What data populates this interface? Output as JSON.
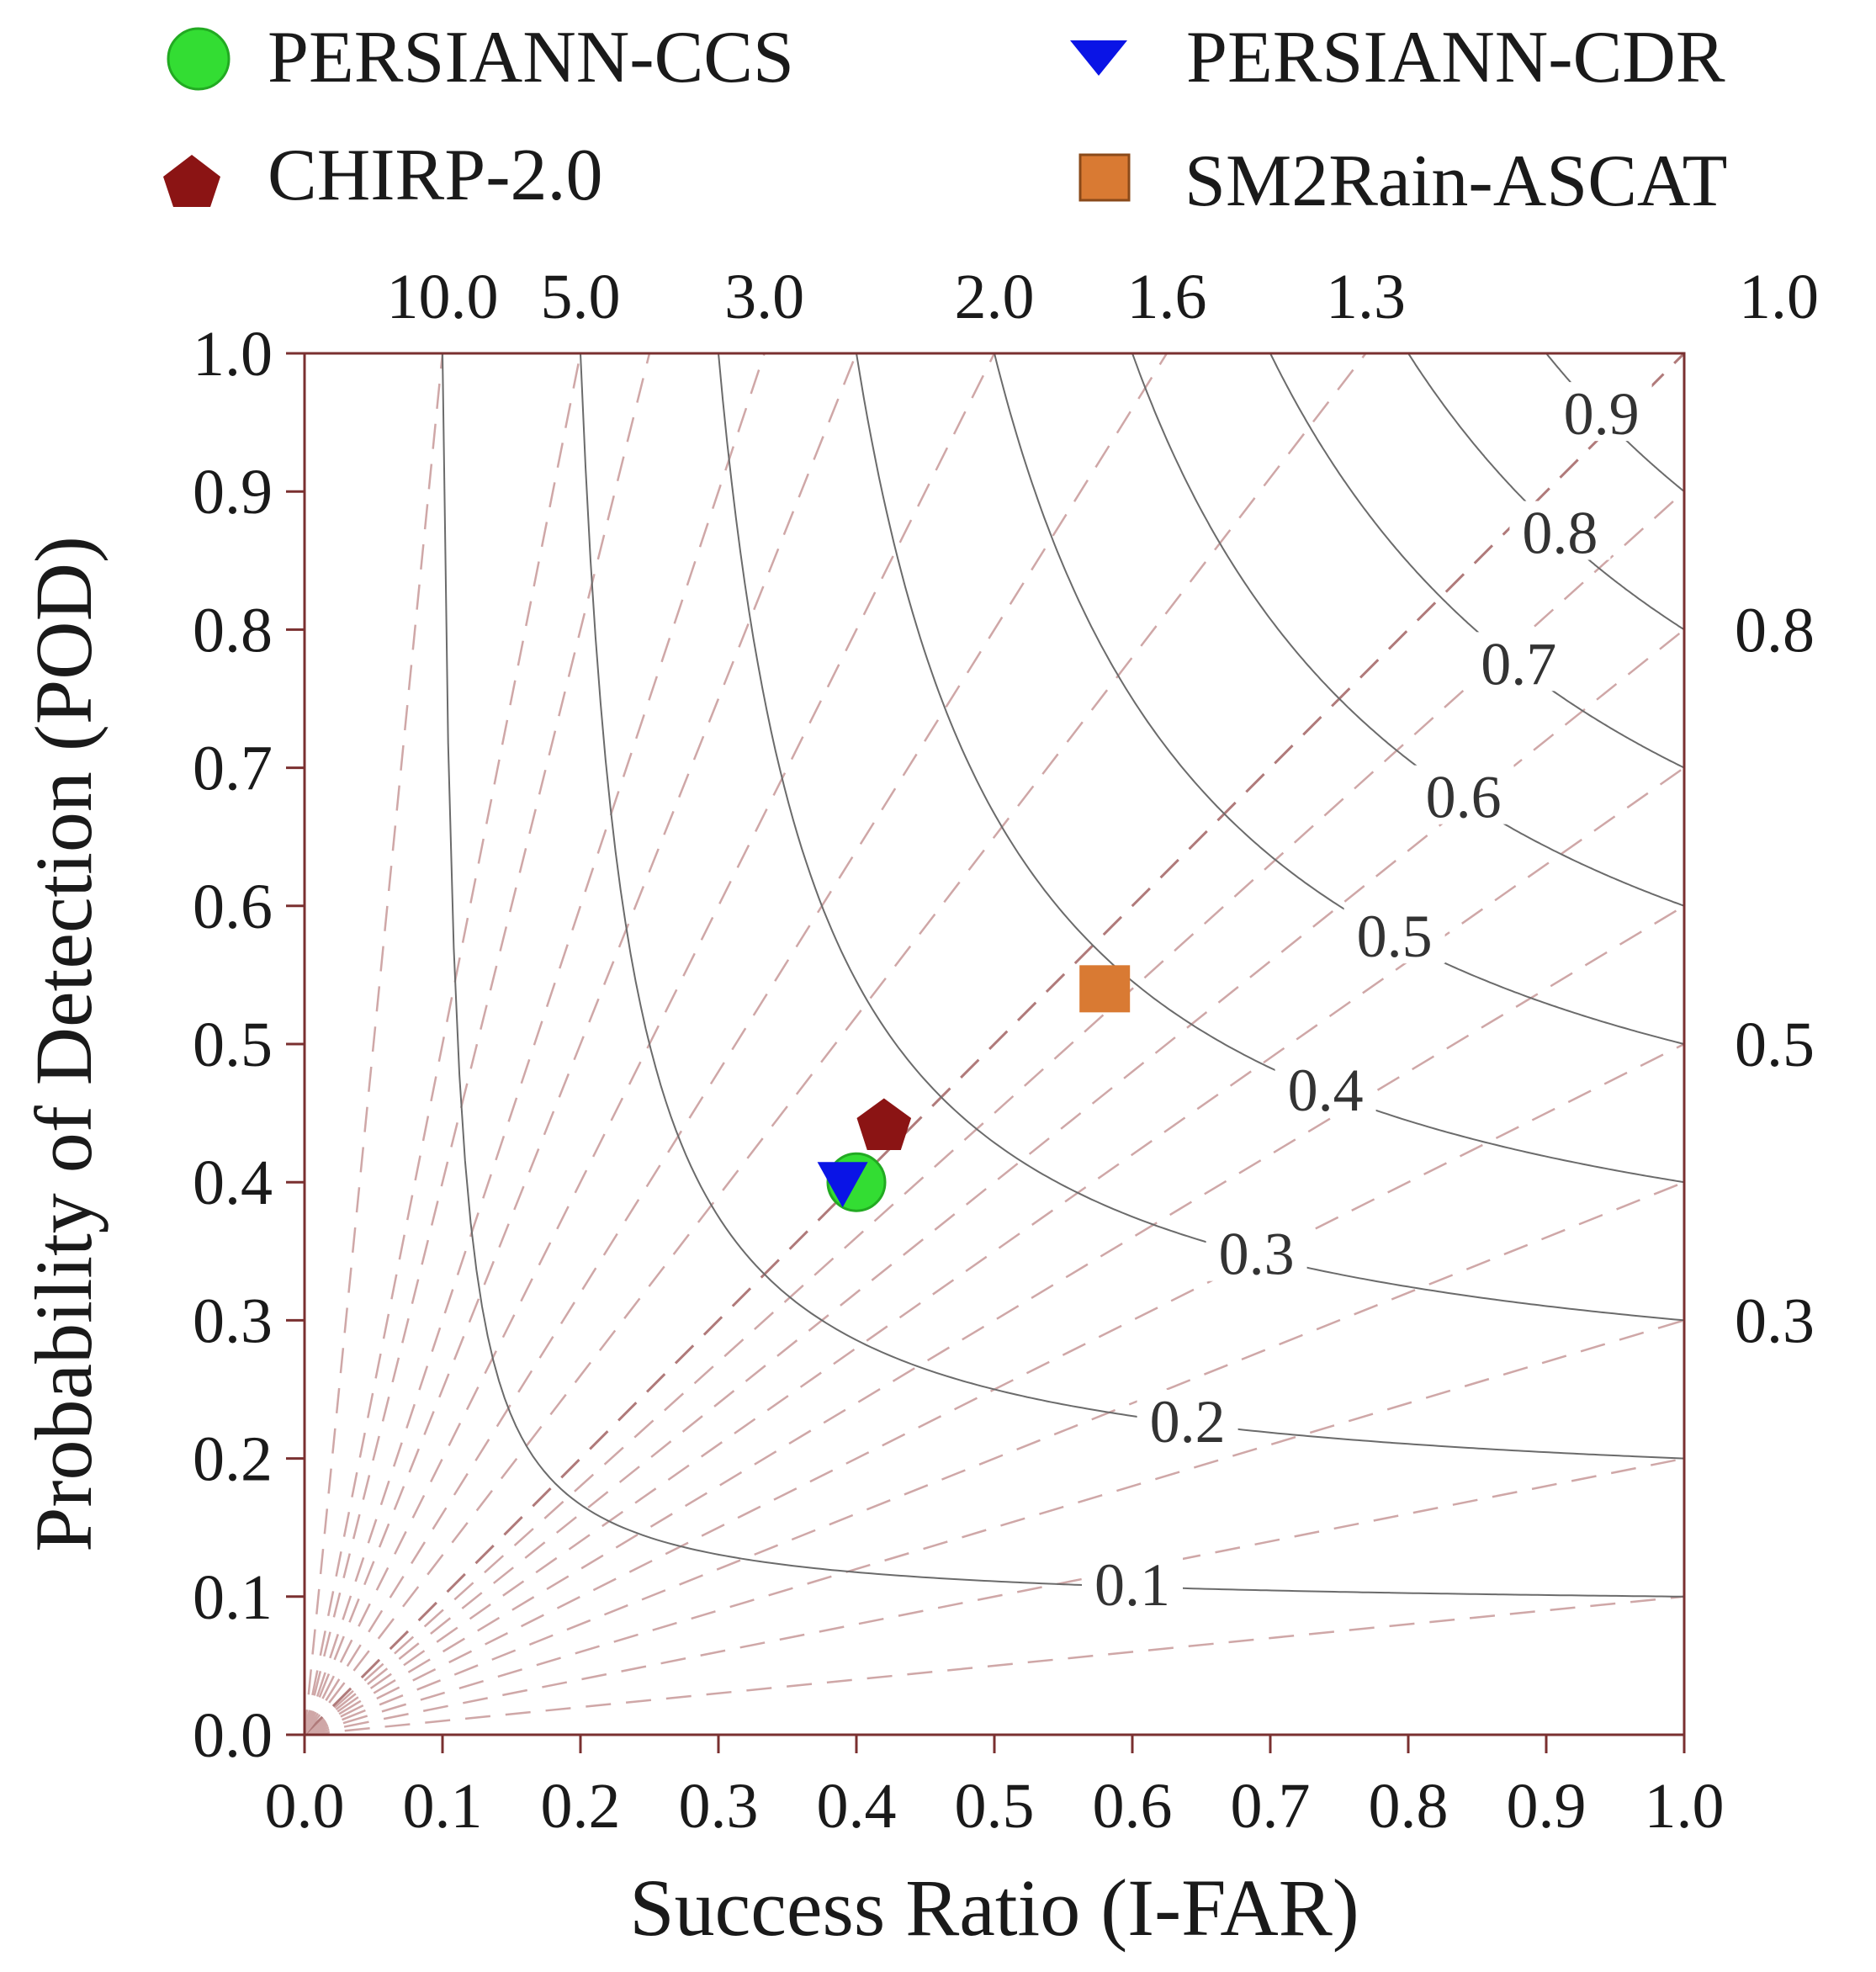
{
  "colors": {
    "axis": "#7a3030",
    "csi_line": "#6b6b6b",
    "bias_line": "#cfa7a7",
    "bias_unity_line": "#b07a7a"
  },
  "chart_data": {
    "type": "scatter",
    "subtype": "performance-diagram",
    "xlabel": "Success Ratio (I-FAR)",
    "ylabel": "Probability of Detection (POD)",
    "xlim": [
      0,
      1
    ],
    "ylim": [
      0,
      1
    ],
    "x_ticks": [
      "0.0",
      "0.1",
      "0.2",
      "0.3",
      "0.4",
      "0.5",
      "0.6",
      "0.7",
      "0.8",
      "0.9",
      "1.0"
    ],
    "y_ticks": [
      "0.0",
      "0.1",
      "0.2",
      "0.3",
      "0.4",
      "0.5",
      "0.6",
      "0.7",
      "0.8",
      "0.9",
      "1.0"
    ],
    "legend": [
      {
        "name": "PERSIANN-CCS",
        "marker": "circle",
        "color": "#33dd33"
      },
      {
        "name": "PERSIANN-CDR",
        "marker": "triangle-down",
        "color": "#0a14e6"
      },
      {
        "name": "CHIRP-2.0",
        "marker": "pentagon",
        "color": "#8b1414"
      },
      {
        "name": "SM2Rain-ASCAT",
        "marker": "square",
        "color": "#d97a33"
      }
    ],
    "points": [
      {
        "name": "PERSIANN-CCS",
        "sr": 0.4,
        "pod": 0.4
      },
      {
        "name": "PERSIANN-CDR",
        "sr": 0.39,
        "pod": 0.4
      },
      {
        "name": "CHIRP-2.0",
        "sr": 0.42,
        "pod": 0.44
      },
      {
        "name": "SM2Rain-ASCAT",
        "sr": 0.58,
        "pod": 0.54
      }
    ],
    "csi_levels": [
      0.1,
      0.2,
      0.3,
      0.4,
      0.5,
      0.6,
      0.7,
      0.8,
      0.9
    ],
    "csi_labels": [
      {
        "text": "0.1",
        "value": 0.1,
        "sr": 0.6
      },
      {
        "text": "0.2",
        "value": 0.2,
        "sr": 0.64
      },
      {
        "text": "0.3",
        "value": 0.3,
        "sr": 0.69
      },
      {
        "text": "0.4",
        "value": 0.4,
        "sr": 0.74
      },
      {
        "text": "0.5",
        "value": 0.5,
        "sr": 0.79
      },
      {
        "text": "0.6",
        "value": 0.6,
        "sr": 0.84
      },
      {
        "text": "0.7",
        "value": 0.7,
        "sr": 0.88
      },
      {
        "text": "0.8",
        "value": 0.8,
        "sr": 0.91
      },
      {
        "text": "0.9",
        "value": 0.9,
        "sr": 0.94
      }
    ],
    "bias_lines": [
      0.1,
      0.2,
      0.3,
      0.4,
      0.5,
      0.6,
      0.7,
      0.8,
      0.9,
      1.0,
      1.3,
      1.6,
      2.0,
      2.5,
      3.0,
      4.0,
      5.0,
      10.0
    ],
    "bias_labels_top": [
      {
        "text": "10.0",
        "bias": 10.0
      },
      {
        "text": "5.0",
        "bias": 5.0
      },
      {
        "text": "3.0",
        "bias": 3.0
      },
      {
        "text": "2.0",
        "bias": 2.0
      },
      {
        "text": "1.6",
        "bias": 1.6
      },
      {
        "text": "1.3",
        "bias": 1.3
      },
      {
        "text": "1.0",
        "bias": 1.0
      }
    ],
    "bias_labels_right": [
      {
        "text": "0.8",
        "bias": 0.8
      },
      {
        "text": "0.5",
        "bias": 0.5
      },
      {
        "text": "0.3",
        "bias": 0.3
      }
    ]
  }
}
